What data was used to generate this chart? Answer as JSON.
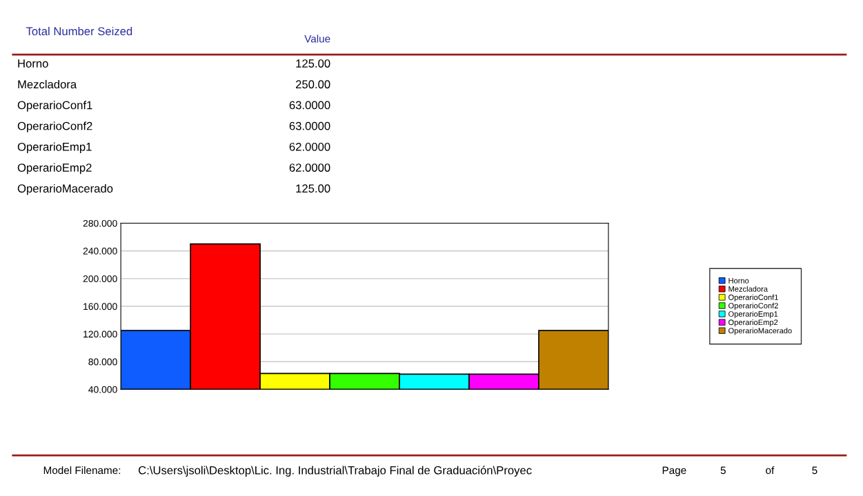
{
  "chart_data": {
    "type": "bar",
    "title": "Total Number Seized",
    "categories": [
      null,
      null,
      null,
      null,
      null,
      null,
      null
    ],
    "series": [
      {
        "name": "Horno",
        "color": "#0f5cff",
        "values": [
          125,
          null,
          null,
          null,
          null,
          null,
          null
        ]
      },
      {
        "name": "Mezcladora",
        "color": "#ff0000",
        "values": [
          null,
          250,
          null,
          null,
          null,
          null,
          null
        ]
      },
      {
        "name": "OperarioConf1",
        "color": "#ffff00",
        "values": [
          null,
          null,
          63,
          null,
          null,
          null,
          null
        ]
      },
      {
        "name": "OperarioConf2",
        "color": "#33ff00",
        "values": [
          null,
          null,
          null,
          63,
          null,
          null,
          null
        ]
      },
      {
        "name": "OperarioEmp1",
        "color": "#00ffff",
        "values": [
          null,
          null,
          null,
          null,
          62,
          null,
          null
        ]
      },
      {
        "name": "OperarioEmp2",
        "color": "#ff00ff",
        "values": [
          null,
          null,
          null,
          null,
          null,
          62,
          null
        ]
      },
      {
        "name": "OperarioMacerado",
        "color": "#c08000",
        "values": [
          null,
          null,
          null,
          null,
          null,
          null,
          125
        ]
      }
    ],
    "ylim": [
      40,
      280
    ],
    "yticks": [
      {
        "value": 40,
        "label": "40.000"
      },
      {
        "value": 80,
        "label": "80.000"
      },
      {
        "value": 120,
        "label": "120.000"
      },
      {
        "value": 160,
        "label": "160.000"
      },
      {
        "value": 200,
        "label": "200.000"
      },
      {
        "value": 240,
        "label": "240.000"
      },
      {
        "value": 280,
        "label": "280.000"
      }
    ],
    "grid": "y",
    "legend": "right",
    "annotations": [
      "Value",
      "125.00",
      "250.00",
      "63.0000",
      "63.0000",
      "62.0000",
      "62.0000",
      "125.00",
      "Model Filename:",
      "C:\\Users\\jsoli\\Desktop\\Lic. Ing. Industrial\\Trabajo Final de Graduación\\Proyec",
      "Page",
      "5",
      "of",
      "5"
    ]
  }
}
